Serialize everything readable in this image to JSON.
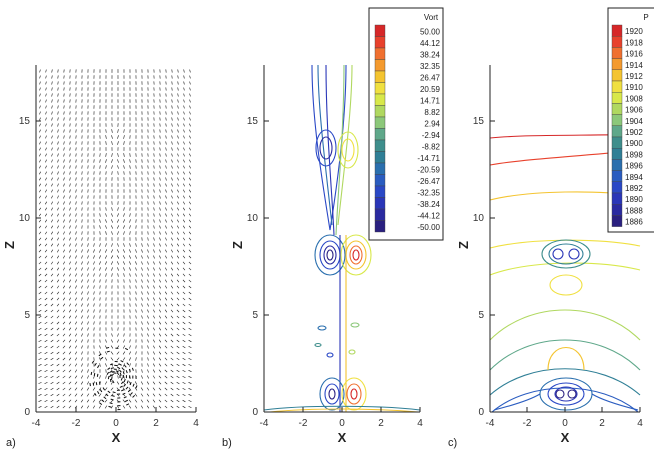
{
  "figure": {
    "panels": [
      {
        "label": "a)",
        "xlabel": "X",
        "ylabel": "Z",
        "x_ticks": [
          "-4",
          "-2",
          "0",
          "2",
          "4"
        ],
        "z_ticks": [
          "0",
          "5",
          "10",
          "15"
        ],
        "content": "velocity vectors"
      },
      {
        "label": "b)",
        "xlabel": "X",
        "ylabel": "Z",
        "x_ticks": [
          "-4",
          "-2",
          "0",
          "2",
          "4"
        ],
        "z_ticks": [
          "0",
          "5",
          "10",
          "15"
        ],
        "legend": {
          "title": "Vort",
          "levels": [
            "50.00",
            "44.12",
            "38.24",
            "32.35",
            "26.47",
            "20.59",
            "14.71",
            "8.82",
            "2.94",
            "-2.94",
            "-8.82",
            "-14.71",
            "-20.59",
            "-26.47",
            "-32.35",
            "-38.24",
            "-44.12",
            "-50.00"
          ],
          "colors": [
            "#d62728",
            "#e8412c",
            "#f07030",
            "#f49a2e",
            "#f4c430",
            "#f0e040",
            "#d8e84a",
            "#b0d860",
            "#8cc87a",
            "#5fa88a",
            "#3e8e8c",
            "#2f7f96",
            "#2a6fae",
            "#2a5cc0",
            "#2a48c6",
            "#2a36b8",
            "#2a2aa0",
            "#2a2080"
          ]
        }
      },
      {
        "label": "c)",
        "xlabel": "X",
        "ylabel": "Z",
        "x_ticks": [
          "-4",
          "-2",
          "0",
          "2",
          "4"
        ],
        "z_ticks": [
          "0",
          "5",
          "10",
          "15"
        ],
        "legend": {
          "title": "P",
          "levels": [
            "1920",
            "1918",
            "1916",
            "1914",
            "1912",
            "1910",
            "1908",
            "1906",
            "1904",
            "1902",
            "1900",
            "1898",
            "1896",
            "1894",
            "1892",
            "1890",
            "1888",
            "1886"
          ],
          "colors": [
            "#d62728",
            "#e8412c",
            "#f07030",
            "#f49a2e",
            "#f4c430",
            "#f0e040",
            "#d8e84a",
            "#b0d860",
            "#8cc87a",
            "#5fa88a",
            "#3e8e8c",
            "#2f7f96",
            "#2a6fae",
            "#2a5cc0",
            "#2a48c6",
            "#2a36b8",
            "#2a2aa0",
            "#2a2080"
          ]
        }
      }
    ]
  }
}
